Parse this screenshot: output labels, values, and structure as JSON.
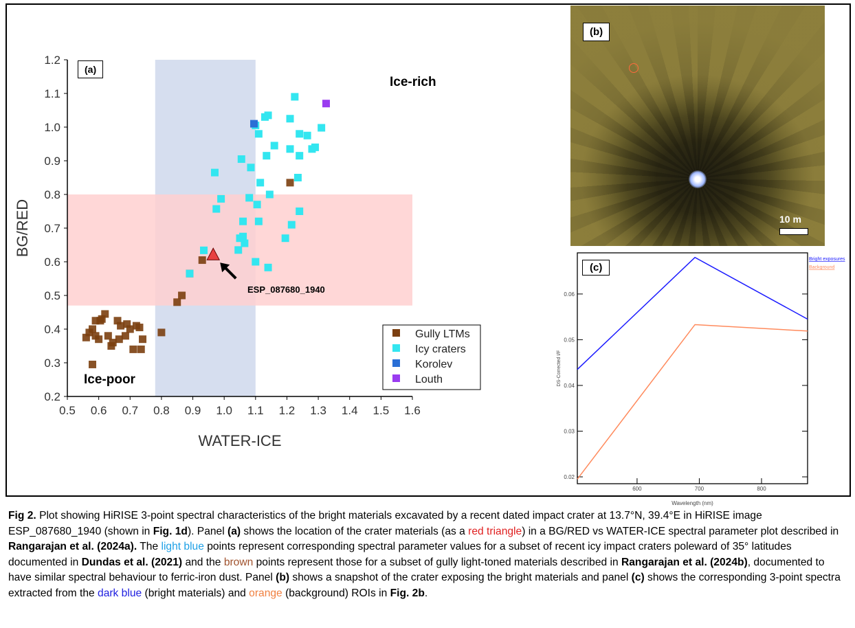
{
  "panel_a": {
    "label": "(a)",
    "region_labels": {
      "ice_rich": "Ice-rich",
      "ice_poor": "Ice-poor"
    },
    "annotation": "ESP_087680_1940"
  },
  "panel_b": {
    "label": "(b)",
    "scale_bar": "10 m"
  },
  "panel_c": {
    "label": "(c)"
  },
  "colors": {
    "gully": "#7b3f10",
    "icy": "#33e6f0",
    "korolev": "#2a6fd6",
    "louth": "#9a3cf0",
    "triangle": "#e84040",
    "blue_region": "#d6deef",
    "pink_region": "#ffd0d0",
    "bright": "#1a1aff",
    "background": "#ff8a5c"
  },
  "chart_data": [
    {
      "type": "scatter",
      "title": "",
      "xlabel": "WATER-ICE",
      "ylabel": "BG/RED",
      "xlim": [
        0.5,
        1.6
      ],
      "ylim": [
        0.2,
        1.2
      ],
      "xticks": [
        "0.5",
        "0.6",
        "0.7",
        "0.8",
        "0.9",
        "1.0",
        "1.1",
        "1.2",
        "1.3",
        "1.4",
        "1.5",
        "1.6"
      ],
      "yticks": [
        "0.2",
        "0.3",
        "0.4",
        "0.5",
        "0.6",
        "0.7",
        "0.8",
        "0.9",
        "1.0",
        "1.1",
        "1.2"
      ],
      "legend_position": "bottom-right",
      "shaded_regions": [
        {
          "axis": "x",
          "range": [
            0.78,
            1.1
          ]
        },
        {
          "axis": "y",
          "range": [
            0.47,
            0.8
          ]
        }
      ],
      "series": [
        {
          "name": "Gully LTMs",
          "points": [
            [
              0.56,
              0.375
            ],
            [
              0.57,
              0.39
            ],
            [
              0.58,
              0.4
            ],
            [
              0.59,
              0.38
            ],
            [
              0.59,
              0.425
            ],
            [
              0.6,
              0.37
            ],
            [
              0.61,
              0.43
            ],
            [
              0.62,
              0.445
            ],
            [
              0.605,
              0.425
            ],
            [
              0.63,
              0.38
            ],
            [
              0.58,
              0.295
            ],
            [
              0.64,
              0.35
            ],
            [
              0.645,
              0.36
            ],
            [
              0.66,
              0.425
            ],
            [
              0.67,
              0.41
            ],
            [
              0.665,
              0.37
            ],
            [
              0.685,
              0.38
            ],
            [
              0.69,
              0.415
            ],
            [
              0.7,
              0.4
            ],
            [
              0.72,
              0.41
            ],
            [
              0.71,
              0.34
            ],
            [
              0.735,
              0.34
            ],
            [
              0.74,
              0.37
            ],
            [
              0.73,
              0.405
            ],
            [
              0.8,
              0.39
            ],
            [
              0.85,
              0.48
            ],
            [
              0.865,
              0.5
            ],
            [
              0.89,
              0.565
            ],
            [
              0.93,
              0.605
            ],
            [
              1.21,
              0.835
            ]
          ]
        },
        {
          "name": "Icy craters",
          "points": [
            [
              0.97,
              0.865
            ],
            [
              0.99,
              0.787
            ],
            [
              0.975,
              0.757
            ],
            [
              0.935,
              0.634
            ],
            [
              0.89,
              0.565
            ],
            [
              1.055,
              0.905
            ],
            [
              1.085,
              0.88
            ],
            [
              1.08,
              0.79
            ],
            [
              1.06,
              0.72
            ],
            [
              1.05,
              0.67
            ],
            [
              1.06,
              0.675
            ],
            [
              1.065,
              0.655
            ],
            [
              1.045,
              0.635
            ],
            [
              1.1,
              0.6
            ],
            [
              1.14,
              0.583
            ],
            [
              1.1,
              1.005
            ],
            [
              1.11,
              0.98
            ],
            [
              1.13,
              1.03
            ],
            [
              1.14,
              1.035
            ],
            [
              1.16,
              0.945
            ],
            [
              1.135,
              0.915
            ],
            [
              1.115,
              0.835
            ],
            [
              1.145,
              0.8
            ],
            [
              1.105,
              0.77
            ],
            [
              1.11,
              0.72
            ],
            [
              1.21,
              1.025
            ],
            [
              1.225,
              1.09
            ],
            [
              1.21,
              0.935
            ],
            [
              1.235,
              0.85
            ],
            [
              1.215,
              0.71
            ],
            [
              1.195,
              0.67
            ],
            [
              1.24,
              0.98
            ],
            [
              1.265,
              0.975
            ],
            [
              1.24,
              0.915
            ],
            [
              1.24,
              0.75
            ],
            [
              1.28,
              0.935
            ],
            [
              1.29,
              0.94
            ],
            [
              1.31,
              0.998
            ]
          ]
        },
        {
          "name": "Korolev",
          "points": [
            [
              1.095,
              1.01
            ]
          ]
        },
        {
          "name": "Louth",
          "points": [
            [
              1.325,
              1.07
            ]
          ]
        }
      ],
      "highlight": {
        "name": "ESP_087680_1940",
        "point": [
          0.965,
          0.62
        ]
      }
    },
    {
      "type": "line",
      "xlabel": "Wavelength (nm)",
      "ylabel": "DS-Corrected I/F",
      "xlim": [
        504,
        874
      ],
      "ylim": [
        0.0185,
        0.069
      ],
      "xticks": [
        "600",
        "700",
        "800"
      ],
      "yticks": [
        "0.02",
        "0.03",
        "0.04",
        "0.05",
        "0.06"
      ],
      "legend_position": "top-right",
      "x": [
        504,
        693,
        874
      ],
      "series": [
        {
          "name": "Bright exposures",
          "values": [
            0.0435,
            0.068,
            0.0545
          ]
        },
        {
          "name": "Background",
          "values": [
            0.0195,
            0.0533,
            0.0519
          ]
        }
      ]
    }
  ],
  "caption": [
    {
      "t": "Fig 2.",
      "s": "b"
    },
    {
      "t": " Plot showing HiRISE 3-point spectral characteristics of the bright materials excavated by a recent dated impact crater at 13.7°N, 39.4°E in HiRISE image ESP_087680_1940 (shown in "
    },
    {
      "t": "Fig. 1d",
      "s": "b"
    },
    {
      "t": ").  Panel "
    },
    {
      "t": "(a)",
      "s": "b"
    },
    {
      "t": " shows the location of the crater materials (as a "
    },
    {
      "t": "red triangle",
      "s": "red"
    },
    {
      "t": ") in a BG/RED vs WATER-ICE spectral parameter plot described in "
    },
    {
      "t": "Rangarajan et al. (2024a).",
      "s": "b"
    },
    {
      "t": " The "
    },
    {
      "t": "light blue",
      "s": "lb"
    },
    {
      "t": " points represent corresponding spectral parameter values for a subset of recent icy impact craters poleward of 35° latitudes documented in "
    },
    {
      "t": "Dundas et al. (2021)",
      "s": "b"
    },
    {
      "t": " and the "
    },
    {
      "t": "brown",
      "s": "br"
    },
    {
      "t": " points represent those for a subset of gully light-toned materials described in "
    },
    {
      "t": "Rangarajan et al. (2024b)",
      "s": "b"
    },
    {
      "t": ", documented to have similar spectral behaviour to ferric-iron dust. Panel "
    },
    {
      "t": "(b)",
      "s": "b"
    },
    {
      "t": " shows a snapshot of the crater exposing the bright materials and panel "
    },
    {
      "t": "(c)",
      "s": "b"
    },
    {
      "t": " shows the corresponding 3-point spectra extracted from the "
    },
    {
      "t": "dark blue",
      "s": "db"
    },
    {
      "t": " (bright materials) and "
    },
    {
      "t": "orange",
      "s": "or"
    },
    {
      "t": " (background) ROIs in "
    },
    {
      "t": "Fig. 2b",
      "s": "b"
    },
    {
      "t": "."
    }
  ]
}
